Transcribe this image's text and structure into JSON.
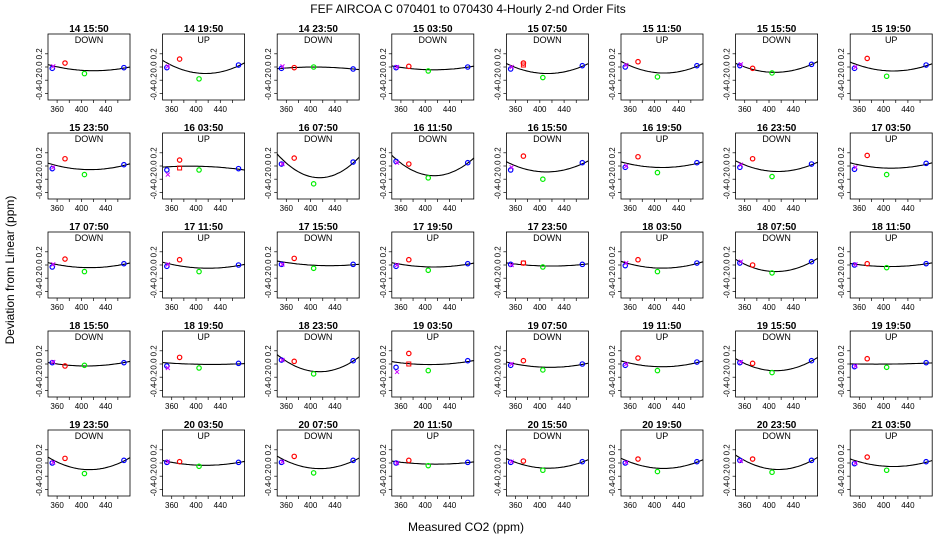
{
  "title": "FEF   AIRCOA C   070401 to 070430   4-Hourly 2-nd Order Fits",
  "chart_data": {
    "type": "scatter",
    "title": "FEF   AIRCOA C   070401 to 070430   4-Hourly 2-nd Order Fits",
    "xlabel": "Measured CO2 (ppm)",
    "ylabel": "Deviation from Linear (ppm)",
    "xlim": [
      345,
      480
    ],
    "ylim": [
      -0.5,
      0.5
    ],
    "xticks": [
      360,
      400,
      440
    ],
    "xtick_labels": [
      "360",
      "400",
      "440"
    ],
    "xticks_minor": [
      380,
      420,
      460
    ],
    "yticks": [
      -0.4,
      -0.2,
      0.0,
      0.2
    ],
    "ytick_labels": [
      "-0.4",
      "-0.2",
      "0.0",
      "0.2"
    ],
    "grid": false,
    "colors": {
      "red": "#ff0000",
      "green": "#00ee00",
      "blue": "#0000ff",
      "magenta": "#cc00ff",
      "curve": "#000000"
    },
    "standards_x": [
      352,
      373,
      405,
      470
    ],
    "panels": [
      {
        "label": "14 15:50",
        "dir": "DOWN",
        "y": [
          -0.02,
          0.06,
          -0.1,
          -0.01
        ],
        "m": [
          0.01,
          null
        ]
      },
      {
        "label": "14 19:50",
        "dir": "UP",
        "y": [
          -0.01,
          0.12,
          -0.18,
          0.03
        ],
        "m": [
          0.01,
          null
        ]
      },
      {
        "label": "14 23:50",
        "dir": "DOWN",
        "y": [
          -0.02,
          -0.01,
          0.0,
          -0.03
        ],
        "m": [
          0.01,
          null
        ]
      },
      {
        "label": "15 03:50",
        "dir": "DOWN",
        "y": [
          -0.01,
          0.01,
          -0.06,
          0.0
        ],
        "m": [
          0.0,
          null
        ]
      },
      {
        "label": "15 07:50",
        "dir": "DOWN",
        "y": [
          -0.03,
          0.06,
          -0.16,
          0.02
        ],
        "m": [
          0.0,
          0.03
        ]
      },
      {
        "label": "15 11:50",
        "dir": "UP",
        "y": [
          0.0,
          0.08,
          -0.15,
          0.02
        ],
        "m": [
          0.03,
          null
        ]
      },
      {
        "label": "15 15:50",
        "dir": "DOWN",
        "y": [
          0.02,
          -0.02,
          -0.09,
          0.04
        ],
        "m": [
          0.04,
          null
        ]
      },
      {
        "label": "15 19:50",
        "dir": "UP",
        "y": [
          -0.02,
          0.13,
          -0.14,
          0.03
        ],
        "m": [
          0.0,
          null
        ]
      },
      {
        "label": "15 23:50",
        "dir": "DOWN",
        "y": [
          -0.04,
          0.11,
          -0.13,
          0.02
        ],
        "m": [
          -0.02,
          null
        ]
      },
      {
        "label": "16 03:50",
        "dir": "UP",
        "y": [
          -0.06,
          0.09,
          -0.06,
          -0.04
        ],
        "m": [
          -0.13,
          -0.03
        ]
      },
      {
        "label": "16 07:50",
        "dir": "DOWN",
        "y": [
          0.03,
          0.12,
          -0.27,
          0.06
        ],
        "m": [
          0.03,
          null
        ]
      },
      {
        "label": "16 11:50",
        "dir": "DOWN",
        "y": [
          0.07,
          0.03,
          -0.18,
          0.05
        ],
        "m": [
          0.05,
          null
        ]
      },
      {
        "label": "16 15:50",
        "dir": "DOWN",
        "y": [
          -0.06,
          0.15,
          -0.2,
          0.05
        ],
        "m": [
          -0.02,
          null
        ]
      },
      {
        "label": "16 19:50",
        "dir": "UP",
        "y": [
          -0.02,
          0.14,
          -0.1,
          0.05
        ],
        "m": [
          0.0,
          null
        ]
      },
      {
        "label": "16 23:50",
        "dir": "DOWN",
        "y": [
          -0.02,
          0.11,
          -0.16,
          0.03
        ],
        "m": [
          0.02,
          null
        ]
      },
      {
        "label": "17 03:50",
        "dir": "UP",
        "y": [
          -0.05,
          0.16,
          -0.13,
          0.04
        ],
        "m": [
          -0.02,
          null
        ]
      },
      {
        "label": "17 07:50",
        "dir": "DOWN",
        "y": [
          -0.03,
          0.09,
          -0.1,
          0.02
        ],
        "m": [
          0.01,
          null
        ]
      },
      {
        "label": "17 11:50",
        "dir": "UP",
        "y": [
          -0.02,
          0.08,
          -0.1,
          0.0
        ],
        "m": [
          0.01,
          null
        ]
      },
      {
        "label": "17 15:50",
        "dir": "DOWN",
        "y": [
          0.01,
          0.1,
          -0.05,
          0.01
        ],
        "m": [
          0.01,
          null
        ]
      },
      {
        "label": "17 19:50",
        "dir": "UP",
        "y": [
          -0.02,
          0.08,
          -0.08,
          0.02
        ],
        "m": [
          0.0,
          null
        ]
      },
      {
        "label": "17 23:50",
        "dir": "DOWN",
        "y": [
          0.01,
          0.03,
          -0.03,
          0.01
        ],
        "m": [
          0.0,
          0.03
        ]
      },
      {
        "label": "18 03:50",
        "dir": "UP",
        "y": [
          -0.01,
          0.08,
          -0.1,
          0.03
        ],
        "m": [
          0.03,
          null
        ]
      },
      {
        "label": "18 07:50",
        "dir": "DOWN",
        "y": [
          0.03,
          0.0,
          -0.12,
          0.05
        ],
        "m": [
          0.05,
          null
        ]
      },
      {
        "label": "18 11:50",
        "dir": "UP",
        "y": [
          0.0,
          0.02,
          -0.04,
          0.02
        ],
        "m": [
          0.01,
          null
        ]
      },
      {
        "label": "18 15:50",
        "dir": "DOWN",
        "y": [
          0.02,
          -0.03,
          -0.02,
          0.02
        ],
        "m": [
          0.03,
          null
        ]
      },
      {
        "label": "18 19:50",
        "dir": "UP",
        "y": [
          -0.03,
          0.1,
          -0.06,
          0.01
        ],
        "m": [
          -0.06,
          null
        ]
      },
      {
        "label": "18 23:50",
        "dir": "DOWN",
        "y": [
          0.06,
          0.04,
          -0.15,
          0.05
        ],
        "m": [
          0.06,
          null
        ]
      },
      {
        "label": "19 03:50",
        "dir": "UP",
        "y": [
          -0.05,
          0.16,
          -0.1,
          0.05
        ],
        "m": [
          -0.12,
          0.0
        ]
      },
      {
        "label": "19 07:50",
        "dir": "DOWN",
        "y": [
          -0.02,
          0.05,
          -0.09,
          0.0
        ],
        "m": [
          0.0,
          null
        ]
      },
      {
        "label": "19 11:50",
        "dir": "UP",
        "y": [
          -0.02,
          0.09,
          -0.1,
          0.03
        ],
        "m": [
          0.0,
          null
        ]
      },
      {
        "label": "19 15:50",
        "dir": "DOWN",
        "y": [
          0.02,
          0.01,
          -0.13,
          0.05
        ],
        "m": [
          0.03,
          null
        ]
      },
      {
        "label": "19 19:50",
        "dir": "UP",
        "y": [
          -0.04,
          0.08,
          -0.05,
          0.02
        ],
        "m": [
          -0.03,
          null
        ]
      },
      {
        "label": "19 23:50",
        "dir": "DOWN",
        "y": [
          0.0,
          0.07,
          -0.16,
          0.04
        ],
        "m": [
          0.01,
          null
        ]
      },
      {
        "label": "20 03:50",
        "dir": "UP",
        "y": [
          0.01,
          0.02,
          -0.05,
          0.01
        ],
        "m": [
          0.02,
          null
        ]
      },
      {
        "label": "20 07:50",
        "dir": "DOWN",
        "y": [
          0.01,
          0.1,
          -0.15,
          0.04
        ],
        "m": [
          0.02,
          null
        ]
      },
      {
        "label": "20 11:50",
        "dir": "UP",
        "y": [
          0.0,
          0.04,
          -0.04,
          0.01
        ],
        "m": [
          0.0,
          null
        ]
      },
      {
        "label": "20 15:50",
        "dir": "DOWN",
        "y": [
          0.01,
          0.03,
          -0.11,
          0.02
        ],
        "m": [
          0.02,
          null
        ]
      },
      {
        "label": "20 19:50",
        "dir": "UP",
        "y": [
          0.0,
          0.06,
          -0.13,
          0.02
        ],
        "m": [
          0.01,
          null
        ]
      },
      {
        "label": "20 23:50",
        "dir": "DOWN",
        "y": [
          0.04,
          0.06,
          -0.14,
          0.04
        ],
        "m": [
          0.03,
          null
        ]
      },
      {
        "label": "21 03:50",
        "dir": "UP",
        "y": [
          -0.01,
          0.09,
          -0.11,
          0.02
        ],
        "m": [
          0.0,
          null
        ]
      }
    ]
  }
}
